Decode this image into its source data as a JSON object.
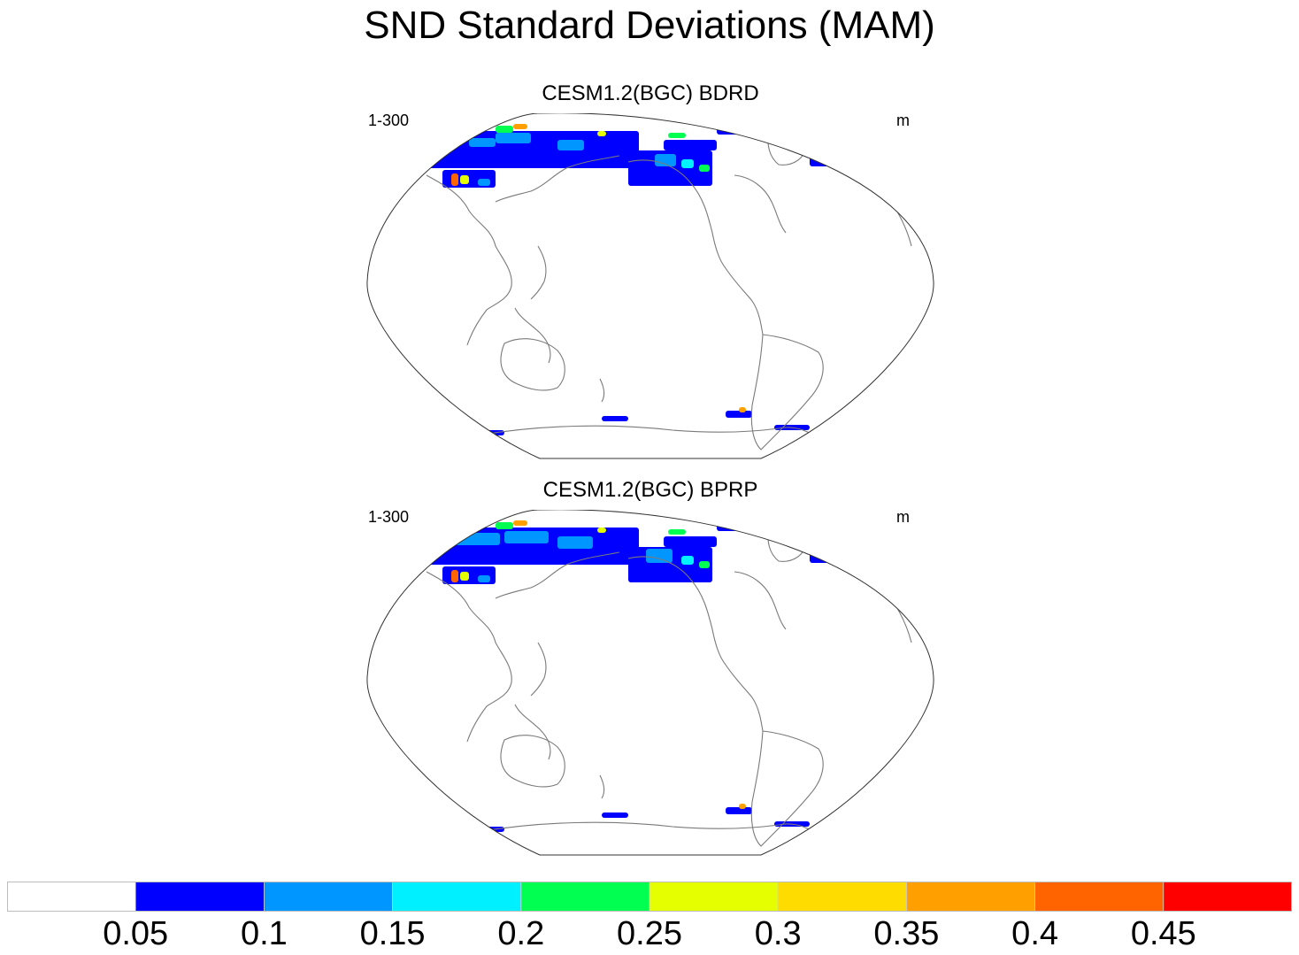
{
  "title": "SND Standard Deviations (MAM)",
  "panels": [
    {
      "title": "CESM1.2(BGC) BDRD",
      "left_string": "1-300",
      "right_string": "m"
    },
    {
      "title": "CESM1.2(BGC) BPRP",
      "left_string": "1-300",
      "right_string": "m"
    }
  ],
  "colorbar": {
    "colors": [
      "#ffffff",
      "#0000ff",
      "#0096ff",
      "#00f0ff",
      "#00ff50",
      "#e6ff00",
      "#ffdc00",
      "#ffa000",
      "#ff6400",
      "#ff0000"
    ],
    "labels": [
      "0.05",
      "0.1",
      "0.15",
      "0.2",
      "0.25",
      "0.3",
      "0.35",
      "0.4",
      "0.45"
    ]
  },
  "colors": {
    "coast": "#7a7a7a",
    "border": "#333333"
  }
}
